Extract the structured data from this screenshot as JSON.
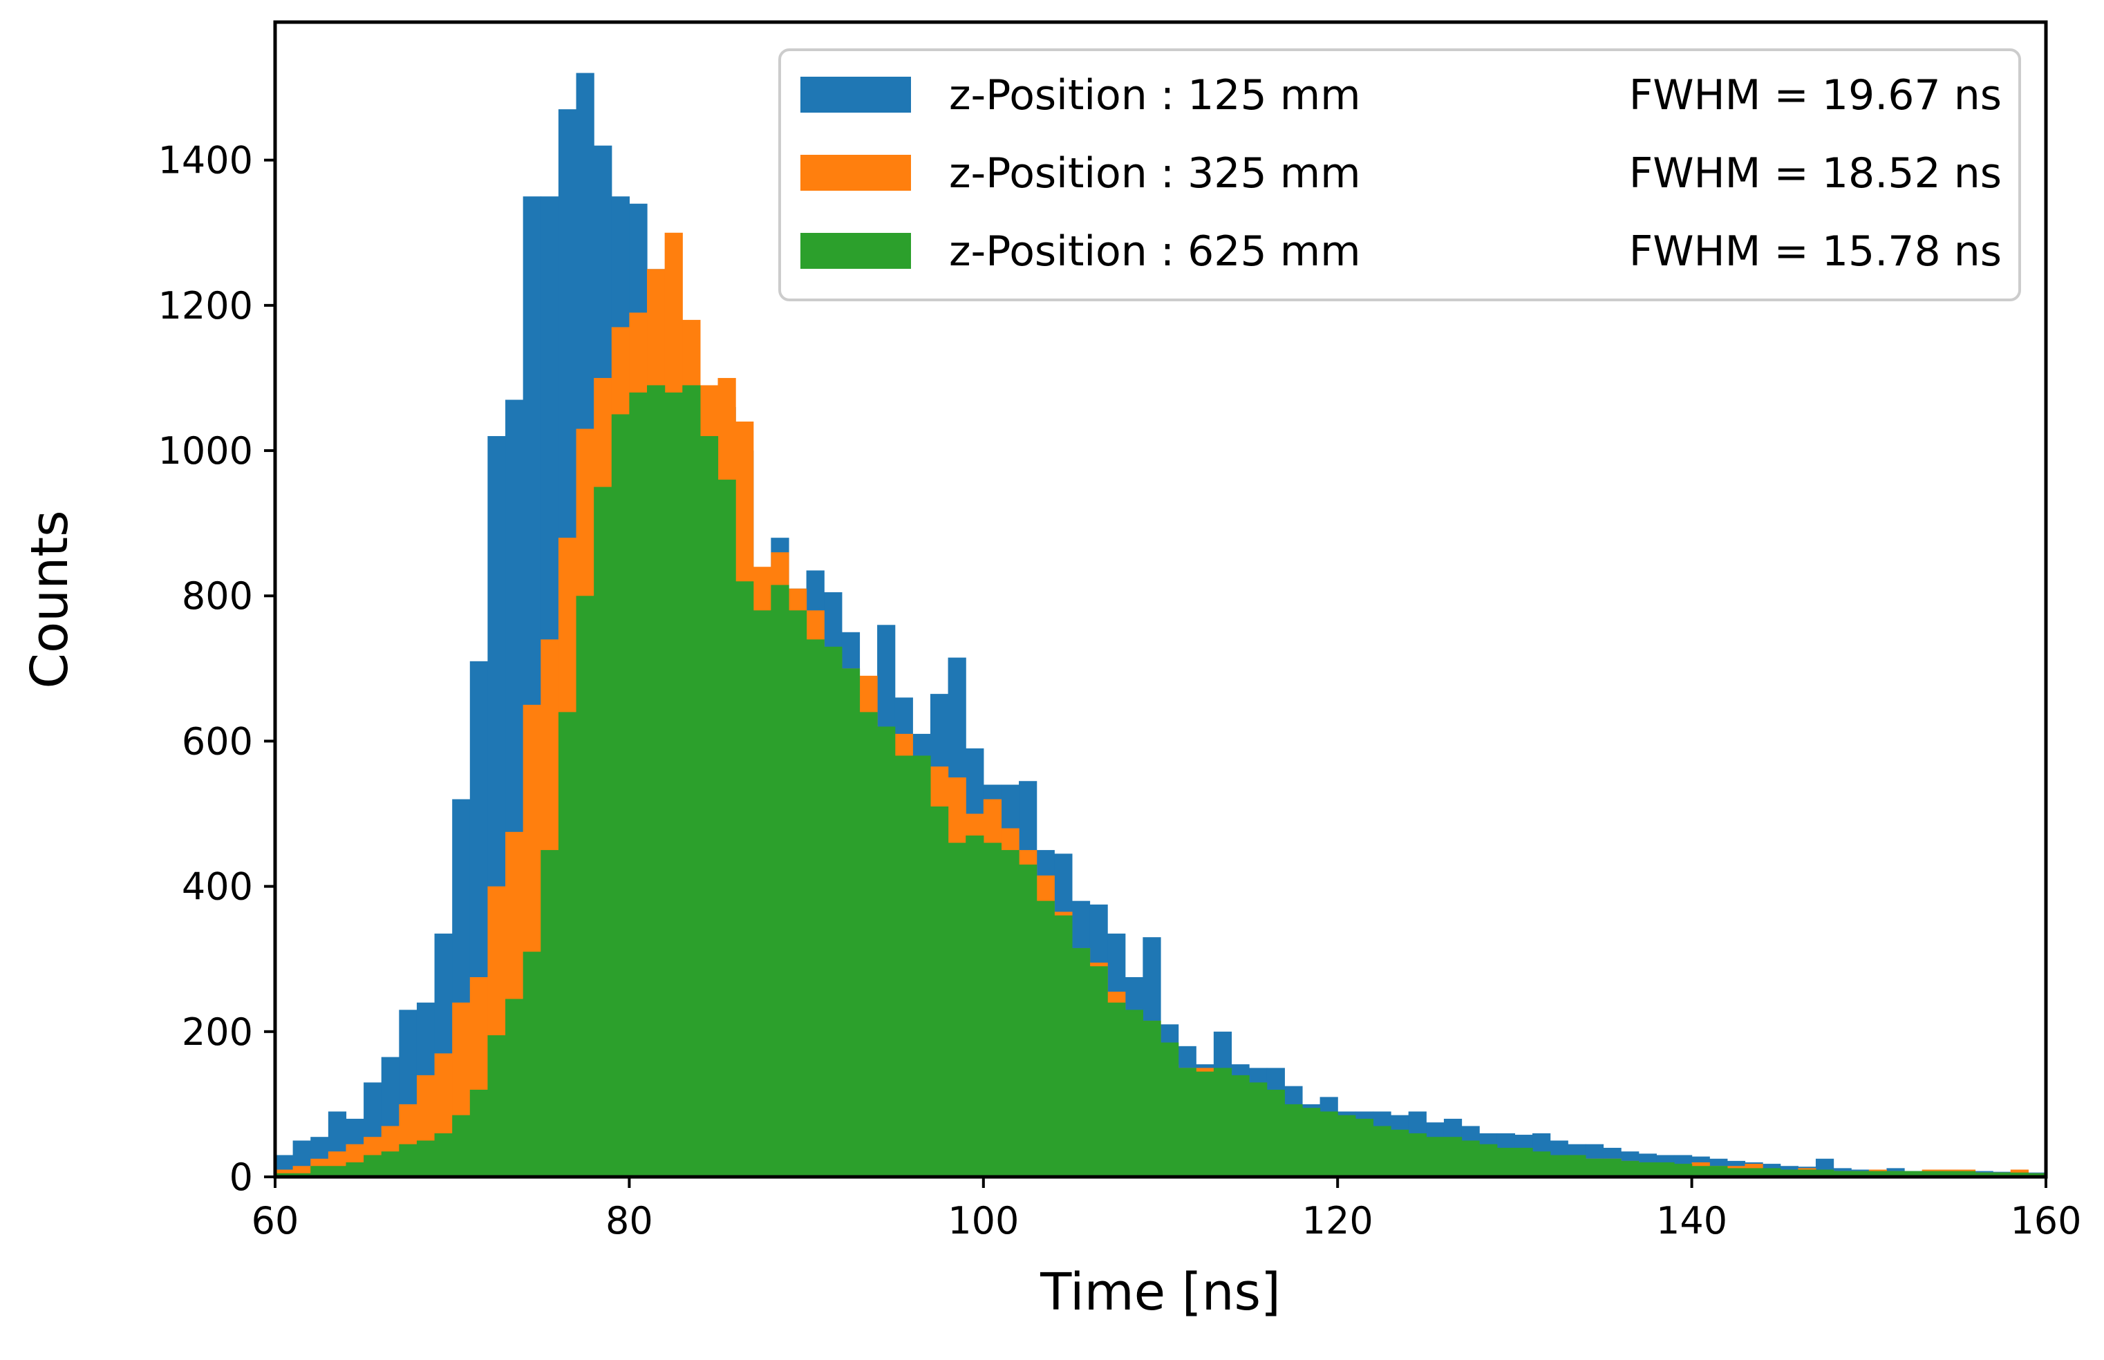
{
  "chart_data": {
    "type": "histogram",
    "title": "",
    "xlabel": "Time [ns]",
    "ylabel": "Counts",
    "xlim": [
      60,
      160
    ],
    "ylim": [
      0,
      1590
    ],
    "bin_edges_start": 60,
    "bin_width": 1,
    "xticks": [
      "60",
      "80",
      "100",
      "120",
      "140",
      "160"
    ],
    "yticks": [
      "0",
      "200",
      "400",
      "600",
      "800",
      "1000",
      "1200",
      "1400"
    ],
    "xtick_values": [
      60,
      80,
      100,
      120,
      140,
      160
    ],
    "ytick_values": [
      0,
      200,
      400,
      600,
      800,
      1000,
      1200,
      1400
    ],
    "grid": false,
    "legend_position": "top-right",
    "series": [
      {
        "name": "z-Position : 125 mm",
        "fwhm": "FWHM = 19.67 ns",
        "color": "#1f77b4",
        "values": [
          30,
          50,
          55,
          90,
          80,
          130,
          165,
          230,
          240,
          335,
          520,
          710,
          1020,
          1070,
          1350,
          1350,
          1470,
          1520,
          1420,
          1350,
          1340,
          1250,
          1000,
          1070,
          1060,
          1060,
          1000,
          830,
          880,
          810,
          835,
          805,
          750,
          650,
          760,
          660,
          610,
          665,
          715,
          590,
          540,
          540,
          545,
          450,
          445,
          380,
          375,
          335,
          275,
          330,
          210,
          180,
          155,
          200,
          155,
          150,
          150,
          125,
          100,
          110,
          90,
          90,
          90,
          85,
          90,
          75,
          80,
          70,
          60,
          60,
          58,
          60,
          50,
          45,
          45,
          40,
          35,
          32,
          30,
          30,
          28,
          25,
          22,
          20,
          18,
          15,
          14,
          25,
          12,
          10,
          10,
          12,
          8,
          8,
          10,
          8,
          8,
          7,
          6,
          6
        ]
      },
      {
        "name": "z-Position : 325 mm",
        "fwhm": "FWHM = 18.52 ns",
        "color": "#ff7f0e",
        "values": [
          10,
          15,
          25,
          35,
          45,
          55,
          70,
          100,
          140,
          170,
          240,
          275,
          400,
          475,
          650,
          740,
          880,
          1030,
          1100,
          1170,
          1190,
          1250,
          1300,
          1180,
          1090,
          1100,
          1040,
          840,
          860,
          810,
          780,
          715,
          700,
          690,
          600,
          610,
          555,
          565,
          550,
          500,
          520,
          480,
          450,
          415,
          365,
          315,
          295,
          255,
          205,
          215,
          155,
          150,
          150,
          130,
          115,
          105,
          95,
          90,
          90,
          75,
          65,
          60,
          55,
          55,
          50,
          50,
          45,
          40,
          40,
          30,
          35,
          30,
          28,
          30,
          25,
          25,
          22,
          20,
          18,
          15,
          20,
          15,
          15,
          18,
          10,
          10,
          12,
          10,
          8,
          8,
          10,
          8,
          6,
          10,
          10,
          10,
          6,
          6,
          10,
          5
        ]
      },
      {
        "name": "z-Position : 625 mm",
        "fwhm": "FWHM = 15.78 ns",
        "color": "#2ca02c",
        "values": [
          5,
          5,
          15,
          15,
          20,
          30,
          35,
          45,
          50,
          60,
          85,
          120,
          195,
          245,
          310,
          450,
          640,
          800,
          950,
          1050,
          1080,
          1090,
          1080,
          1090,
          1020,
          960,
          820,
          780,
          815,
          780,
          740,
          730,
          700,
          640,
          620,
          580,
          580,
          510,
          460,
          470,
          460,
          450,
          430,
          380,
          360,
          315,
          290,
          240,
          230,
          215,
          185,
          150,
          145,
          150,
          140,
          130,
          120,
          100,
          95,
          90,
          85,
          80,
          70,
          65,
          60,
          55,
          55,
          50,
          45,
          40,
          40,
          35,
          30,
          30,
          25,
          25,
          22,
          20,
          20,
          18,
          15,
          15,
          12,
          12,
          12,
          10,
          10,
          10,
          8,
          8,
          8,
          8,
          8,
          8,
          8,
          8,
          6,
          6,
          6,
          5
        ]
      }
    ]
  }
}
